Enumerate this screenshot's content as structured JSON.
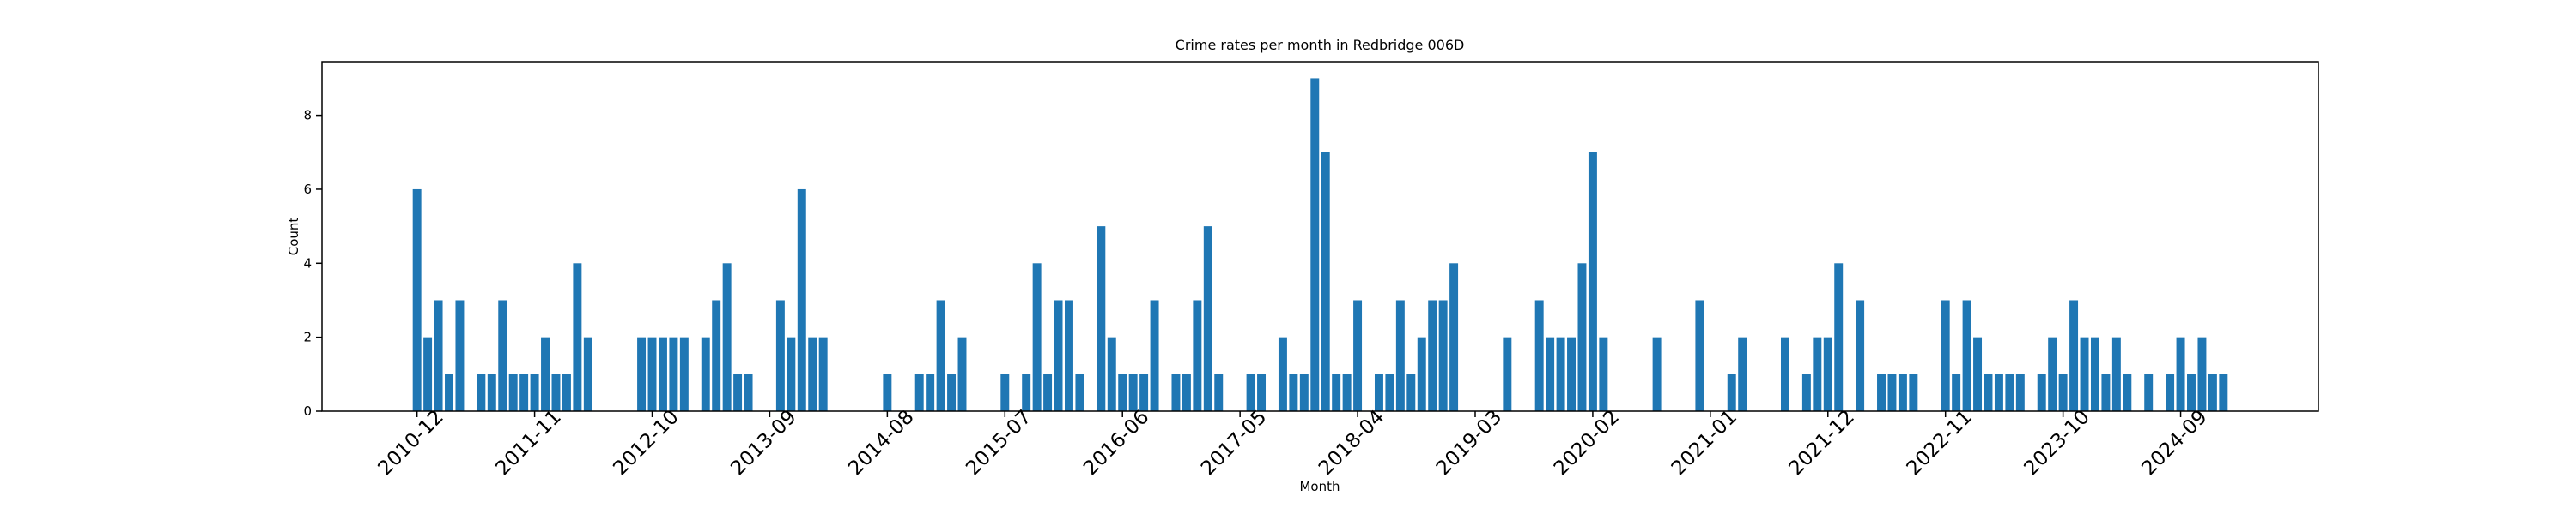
{
  "chart_data": {
    "type": "bar",
    "title": "Crime rates per month in Redbridge 006D",
    "x_label": "Month",
    "y_label": "Count",
    "color": "#1f77b4",
    "categories": [
      "2010-12",
      null,
      null,
      null,
      null,
      null,
      null,
      null,
      null,
      null,
      null,
      "2011-11",
      null,
      null,
      null,
      null,
      null,
      null,
      null,
      null,
      null,
      null,
      "2012-10",
      null,
      null,
      null,
      null,
      null,
      null,
      null,
      null,
      null,
      null,
      "2013-09",
      null,
      null,
      null,
      null,
      null,
      null,
      null,
      null,
      null,
      null,
      "2014-08",
      null,
      null,
      null,
      null,
      null,
      null,
      null,
      null,
      null,
      null,
      "2015-07",
      null,
      null,
      null,
      null,
      null,
      null,
      null,
      null,
      null,
      null,
      "2016-06",
      null,
      null,
      null,
      null,
      null,
      null,
      null,
      null,
      null,
      null,
      "2017-05",
      null,
      null,
      null,
      null,
      null,
      null,
      null,
      null,
      null,
      null,
      "2018-04",
      null,
      null,
      null,
      null,
      null,
      null,
      null,
      null,
      null,
      null,
      "2019-03",
      null,
      null,
      null,
      null,
      null,
      null,
      null,
      null,
      null,
      null,
      "2020-02",
      null,
      null,
      null,
      null,
      null,
      null,
      null,
      null,
      null,
      null,
      "2021-01",
      null,
      null,
      null,
      null,
      null,
      null,
      null,
      null,
      null,
      null,
      "2021-12",
      null,
      null,
      null,
      null,
      null,
      null,
      null,
      null,
      null,
      null,
      "2022-11",
      null,
      null,
      null,
      null,
      null,
      null,
      null,
      null,
      null,
      null,
      "2023-10",
      null,
      null,
      null,
      null,
      null,
      null,
      null,
      null,
      null,
      null,
      "2024-09",
      null,
      null,
      null,
      null
    ],
    "values": [
      6,
      2,
      3,
      1,
      3,
      0,
      1,
      1,
      3,
      1,
      1,
      1,
      2,
      1,
      1,
      4,
      2,
      0,
      0,
      0,
      0,
      2,
      2,
      2,
      2,
      2,
      0,
      2,
      3,
      4,
      1,
      1,
      0,
      0,
      3,
      2,
      6,
      2,
      2,
      0,
      0,
      0,
      0,
      0,
      1,
      0,
      0,
      1,
      1,
      3,
      1,
      2,
      0,
      0,
      0,
      1,
      0,
      1,
      4,
      1,
      3,
      3,
      1,
      0,
      5,
      2,
      1,
      1,
      1,
      3,
      0,
      1,
      1,
      3,
      5,
      1,
      0,
      0,
      1,
      1,
      0,
      2,
      1,
      1,
      9,
      7,
      1,
      1,
      3,
      0,
      1,
      1,
      3,
      1,
      2,
      3,
      3,
      4,
      0,
      0,
      0,
      0,
      2,
      0,
      0,
      3,
      2,
      2,
      2,
      4,
      7,
      2,
      0,
      0,
      0,
      0,
      2,
      0,
      0,
      0,
      3,
      0,
      0,
      1,
      2,
      0,
      0,
      0,
      2,
      0,
      1,
      2,
      2,
      4,
      0,
      3,
      0,
      1,
      1,
      1,
      1,
      0,
      0,
      3,
      1,
      3,
      2,
      1,
      1,
      1,
      1,
      0,
      1,
      2,
      1,
      3,
      2,
      2,
      1,
      2,
      1,
      0,
      1,
      0,
      1,
      2,
      1,
      2,
      1,
      1
    ],
    "ylim": [
      0,
      9.45
    ],
    "yticks": [
      0,
      2,
      4,
      6,
      8
    ]
  }
}
